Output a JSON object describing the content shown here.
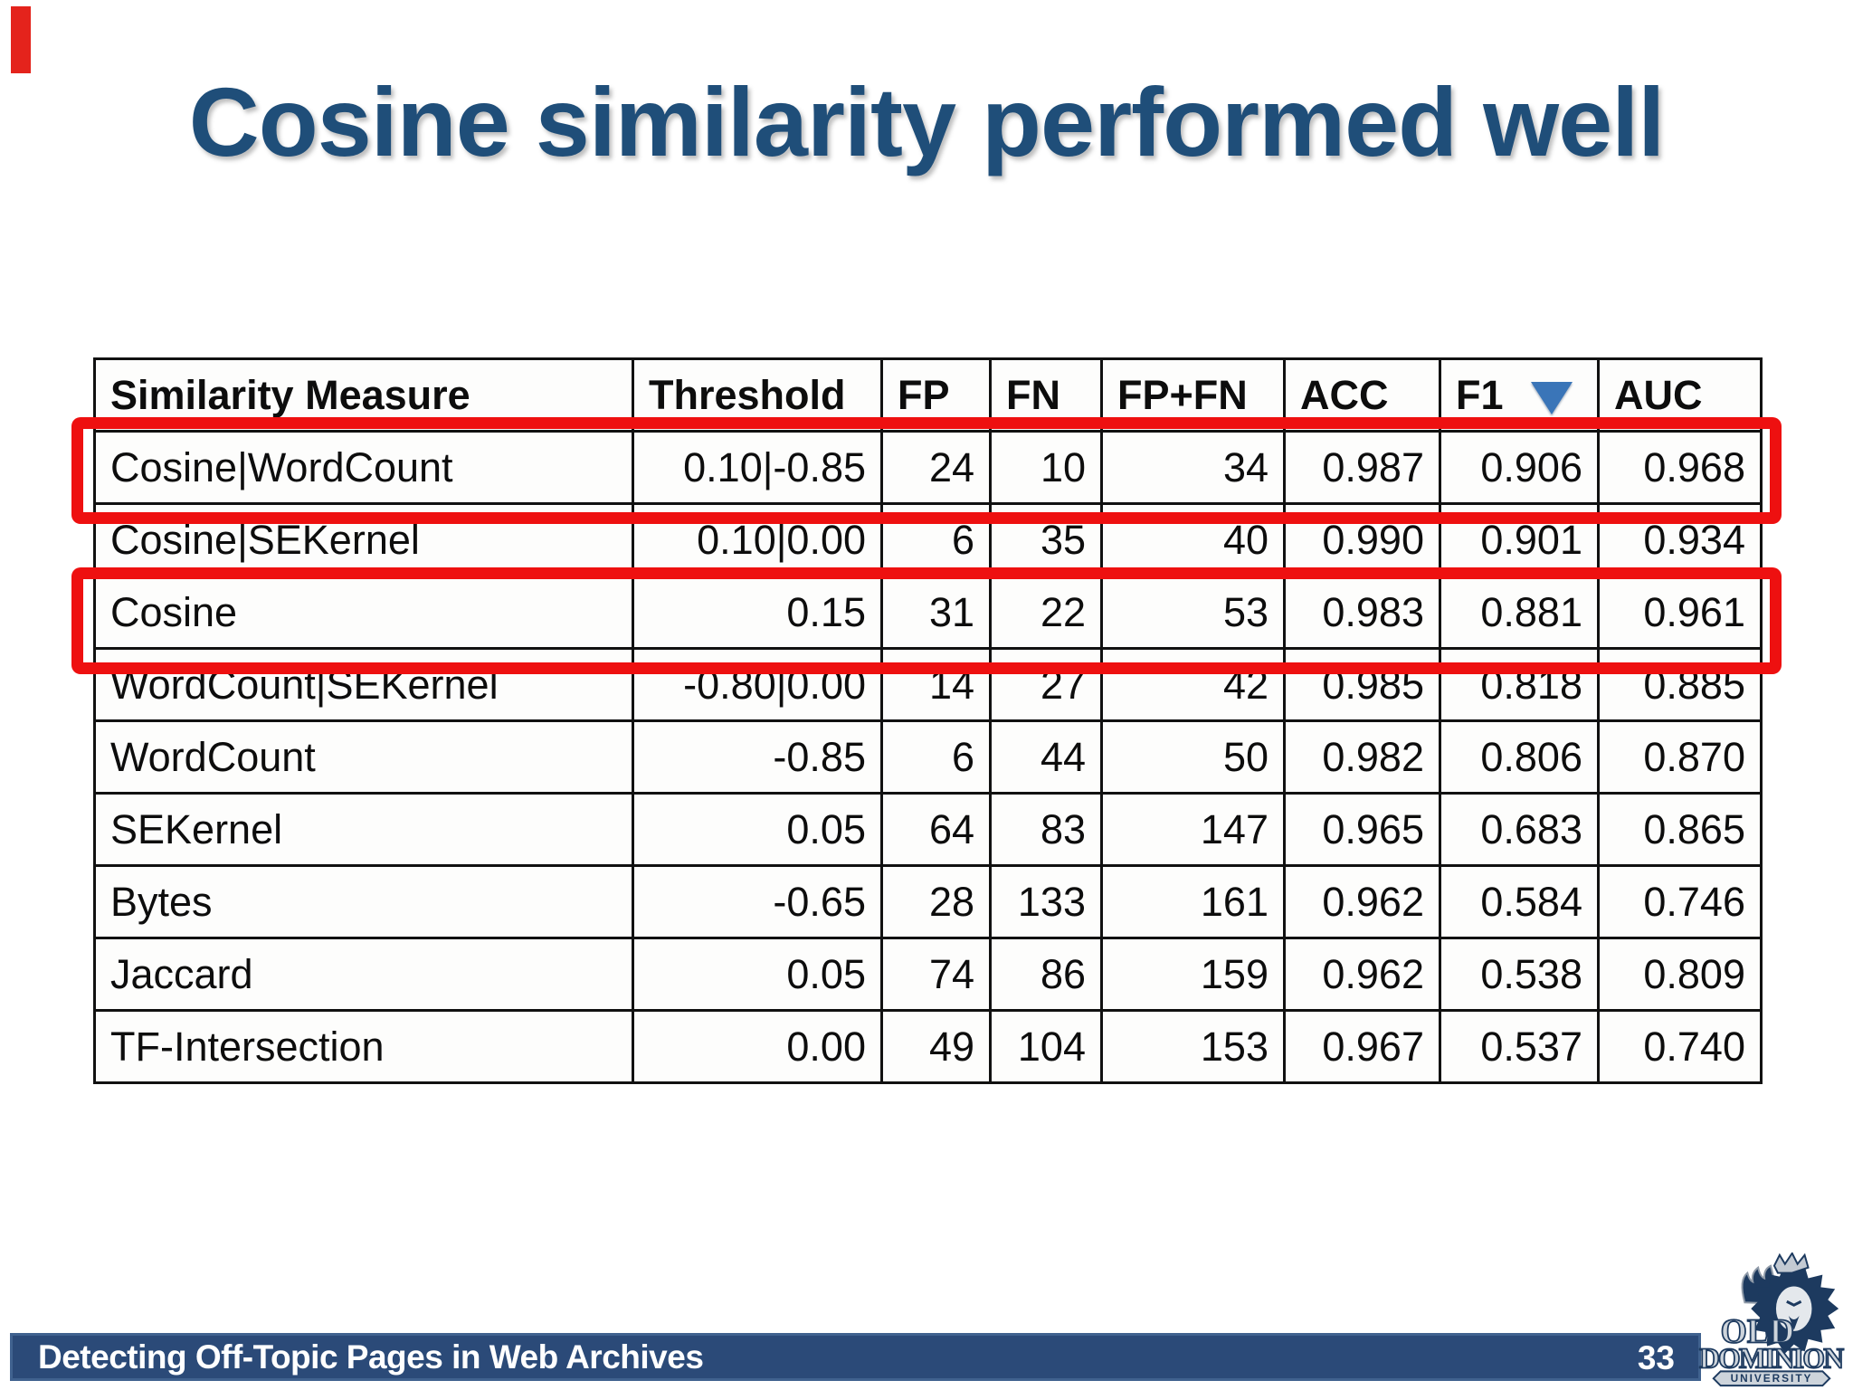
{
  "slide": {
    "title": "Cosine similarity performed well"
  },
  "footer": {
    "label": "Detecting Off-Topic Pages in Web Archives",
    "page_number": "33"
  },
  "logo": {
    "line1": "OLD",
    "line2": "DOMINION",
    "line3": "UNIVERSITY"
  },
  "colors": {
    "title_blue": "#1f4e79",
    "footer_bar_blue": "#2b4a78",
    "highlight_red": "#ee1010",
    "sort_triangle_blue": "#3a75b8",
    "table_border_black": "#111111"
  },
  "chart_data": {
    "type": "table",
    "title": "Cosine similarity performed well",
    "columns": [
      "Similarity Measure",
      "Threshold",
      "FP",
      "FN",
      "FP+FN",
      "ACC",
      "F1",
      "AUC"
    ],
    "sort": {
      "column": "F1",
      "direction": "desc"
    },
    "rows": [
      [
        "Cosine|WordCount",
        "0.10|-0.85",
        "24",
        "10",
        "34",
        "0.987",
        "0.906",
        "0.968"
      ],
      [
        "Cosine|SEKernel",
        "0.10|0.00",
        "6",
        "35",
        "40",
        "0.990",
        "0.901",
        "0.934"
      ],
      [
        "Cosine",
        "0.15",
        "31",
        "22",
        "53",
        "0.983",
        "0.881",
        "0.961"
      ],
      [
        "WordCount|SEKernel",
        "-0.80|0.00",
        "14",
        "27",
        "42",
        "0.985",
        "0.818",
        "0.885"
      ],
      [
        "WordCount",
        "-0.85",
        "6",
        "44",
        "50",
        "0.982",
        "0.806",
        "0.870"
      ],
      [
        "SEKernel",
        "0.05",
        "64",
        "83",
        "147",
        "0.965",
        "0.683",
        "0.865"
      ],
      [
        "Bytes",
        "-0.65",
        "28",
        "133",
        "161",
        "0.962",
        "0.584",
        "0.746"
      ],
      [
        "Jaccard",
        "0.05",
        "74",
        "86",
        "159",
        "0.962",
        "0.538",
        "0.809"
      ],
      [
        "TF-Intersection",
        "0.00",
        "49",
        "104",
        "153",
        "0.967",
        "0.537",
        "0.740"
      ]
    ],
    "highlighted_row_indices": [
      0,
      2
    ]
  }
}
